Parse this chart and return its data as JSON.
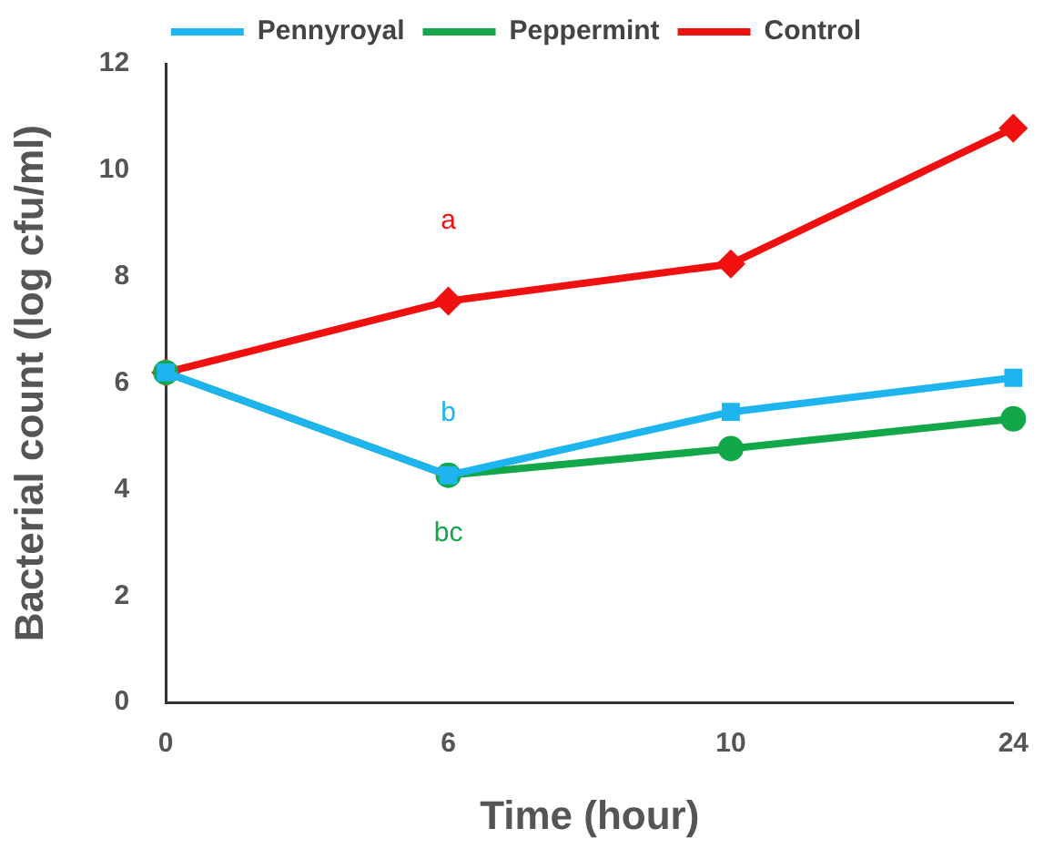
{
  "chart_data": {
    "type": "line",
    "xlabel": "Time (hour)",
    "ylabel": "Bacterial count (log cfu/ml)",
    "categories": [
      "0",
      "6",
      "10",
      "24"
    ],
    "series": [
      {
        "name": "Pennyroyal",
        "color": "#1eb4f0",
        "marker": "square",
        "values": [
          6.2,
          4.27,
          5.46,
          6.1
        ]
      },
      {
        "name": "Peppermint",
        "color": "#12a84a",
        "marker": "circle",
        "values": [
          6.2,
          4.27,
          4.77,
          5.33
        ]
      },
      {
        "name": "Control",
        "color": "#f01010",
        "marker": "diamond",
        "values": [
          6.2,
          7.54,
          8.24,
          10.79
        ]
      }
    ],
    "ylim": [
      0,
      12
    ],
    "yticks": [
      0,
      2,
      4,
      6,
      8,
      10,
      12
    ],
    "grid": false,
    "legend": "top",
    "annotations": [
      "a",
      "b",
      "bc"
    ]
  }
}
